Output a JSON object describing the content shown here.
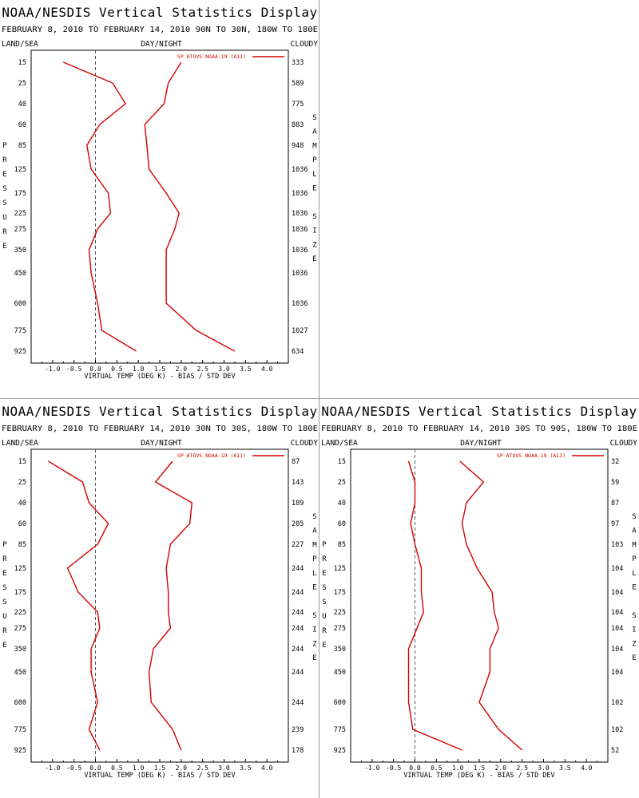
{
  "page": {
    "title": "NOAA/NESDIS Vertical Statistics Display",
    "date_range": "FEBRUARY 8, 2010 TO FEBRUARY 14, 2010",
    "header_left": "LAND/SEA",
    "header_mid": "DAY/NIGHT",
    "header_right": "CLOUDY",
    "left_axis_letters": [
      "P",
      "R",
      "E",
      "S",
      "S",
      "U",
      "R",
      "E"
    ],
    "right_axis_letters": [
      "S",
      "A",
      "M",
      "P",
      "L",
      "E",
      "",
      "S",
      "I",
      "Z",
      "E"
    ],
    "xlabel": "VIRTUAL TEMP (DEG K) - BIAS / STD DEV",
    "legend_label": "SP ATOVS NOAA-19 (A11)",
    "line_color": "#d40000",
    "zero_line_color": "#555555"
  },
  "chart_data": [
    {
      "type": "line",
      "title": "NOAA/NESDIS Vertical Statistics Display",
      "subtitle": "FEBRUARY 8, 2010 TO FEBRUARY 14, 2010 90N TO 30N, 180W TO 180E",
      "region": "90N TO 30N, 180W TO 180E",
      "xlabel": "VIRTUAL TEMP (DEG K) - BIAS / STD DEV",
      "ylabel": "PRESSURE",
      "y2label": "SAMPLE SIZE",
      "xlim": [
        -1.5,
        4.5
      ],
      "xticks": [
        "-1.0",
        "-0.5",
        "0.0",
        "0.5",
        "1.0",
        "1.5",
        "2.0",
        "2.5",
        "3.0",
        "3.5",
        "4.0"
      ],
      "pressure_levels": [
        "15",
        "25",
        "40",
        "60",
        "85",
        "125",
        "175",
        "225",
        "275",
        "350",
        "450",
        "600",
        "775",
        "925"
      ],
      "sample_size": [
        "333",
        "589",
        "775",
        "883",
        "948",
        "1036",
        "1036",
        "1036",
        "1036",
        "1036",
        "1036",
        "1036",
        "1027",
        "634"
      ],
      "legend": "SP ATOVS NOAA-19 (A11)",
      "series": [
        {
          "name": "BIAS",
          "values": [
            -0.75,
            0.4,
            0.7,
            0.1,
            -0.2,
            -0.1,
            0.3,
            0.35,
            0.05,
            -0.15,
            -0.1,
            0.05,
            0.15,
            0.95
          ]
        },
        {
          "name": "STD DEV",
          "values": [
            2.0,
            1.7,
            1.6,
            1.15,
            1.2,
            1.25,
            1.65,
            1.95,
            1.85,
            1.65,
            1.65,
            1.65,
            2.35,
            3.25
          ]
        }
      ]
    },
    {
      "type": "line",
      "title": "NOAA/NESDIS Vertical Statistics Display",
      "subtitle": "FEBRUARY 8, 2010 TO FEBRUARY 14, 2010 30N TO 30S, 180W TO 180E",
      "region": "30N TO 30S, 180W TO 180E",
      "xlabel": "VIRTUAL TEMP (DEG K) - BIAS / STD DEV",
      "ylabel": "PRESSURE",
      "y2label": "SAMPLE SIZE",
      "xlim": [
        -1.5,
        4.5
      ],
      "xticks": [
        "-1.0",
        "-0.5",
        "0.0",
        "0.5",
        "1.0",
        "1.5",
        "2.0",
        "2.5",
        "3.0",
        "3.5",
        "4.0"
      ],
      "pressure_levels": [
        "15",
        "25",
        "40",
        "60",
        "85",
        "125",
        "175",
        "225",
        "275",
        "350",
        "450",
        "600",
        "775",
        "925"
      ],
      "sample_size": [
        "87",
        "143",
        "189",
        "205",
        "227",
        "244",
        "244",
        "244",
        "244",
        "244",
        "244",
        "244",
        "239",
        "178"
      ],
      "legend": "SP ATOVS NOAA-19 (A11)",
      "series": [
        {
          "name": "BIAS",
          "values": [
            -1.1,
            -0.3,
            -0.15,
            0.3,
            0.05,
            -0.65,
            -0.4,
            0.05,
            0.1,
            -0.1,
            -0.1,
            0.05,
            -0.15,
            0.1
          ]
        },
        {
          "name": "STD DEV",
          "values": [
            1.8,
            1.4,
            2.25,
            2.2,
            1.75,
            1.65,
            1.7,
            1.7,
            1.75,
            1.35,
            1.25,
            1.3,
            1.8,
            2.0
          ]
        }
      ]
    },
    {
      "type": "line",
      "title": "NOAA/NESDIS Vertical Statistics Display",
      "subtitle": "FEBRUARY 8, 2010 TO FEBRUARY 14, 2010 30S TO 90S, 180W TO 180E",
      "region": "30S TO 90S, 180W TO 180E",
      "xlabel": "VIRTUAL TEMP (DEG K) - BIAS / STD DEV",
      "ylabel": "PRESSURE",
      "y2label": "SAMPLE SIZE",
      "xlim": [
        -1.5,
        4.5
      ],
      "xticks": [
        "-1.0",
        "-0.5",
        "0.0",
        "0.5",
        "1.0",
        "1.5",
        "2.0",
        "2.5",
        "3.0",
        "3.5",
        "4.0"
      ],
      "pressure_levels": [
        "15",
        "25",
        "40",
        "60",
        "85",
        "125",
        "175",
        "225",
        "275",
        "350",
        "450",
        "600",
        "775",
        "925"
      ],
      "sample_size": [
        "32",
        "59",
        "87",
        "97",
        "103",
        "104",
        "104",
        "104",
        "104",
        "104",
        "104",
        "102",
        "102",
        "52"
      ],
      "legend": "SP ATOVS NOAA-19 (A11)",
      "series": [
        {
          "name": "BIAS",
          "values": [
            -0.15,
            0.0,
            0.0,
            -0.1,
            0.0,
            0.15,
            0.15,
            0.2,
            0.05,
            -0.15,
            -0.15,
            -0.15,
            -0.05,
            1.1
          ]
        },
        {
          "name": "STD DEV",
          "values": [
            1.05,
            1.6,
            1.2,
            1.1,
            1.2,
            1.45,
            1.8,
            1.85,
            1.95,
            1.75,
            1.75,
            1.5,
            1.95,
            2.5
          ]
        }
      ]
    }
  ]
}
